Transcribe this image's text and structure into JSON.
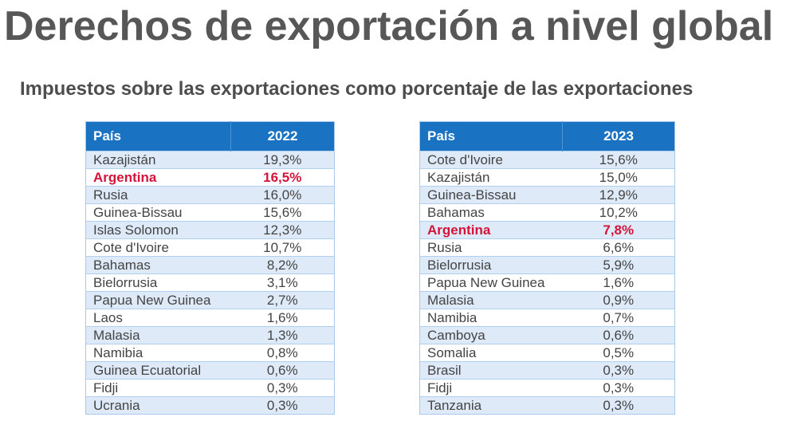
{
  "title": "Derechos de exportación a nivel global",
  "subtitle": "Impuestos sobre las exportaciones como porcentaje de las exportaciones",
  "colors": {
    "header_bg": "#1a72c2",
    "row_alt_bg": "#dfeaf8",
    "highlight_text": "#d4143a",
    "title_text": "#575757"
  },
  "tables": [
    {
      "header": {
        "country": "País",
        "year": "2022"
      },
      "rows": [
        {
          "country": "Kazajistán",
          "value": "19,3%",
          "highlight": false
        },
        {
          "country": "Argentina",
          "value": "16,5%",
          "highlight": true
        },
        {
          "country": "Rusia",
          "value": "16,0%",
          "highlight": false
        },
        {
          "country": "Guinea-Bissau",
          "value": "15,6%",
          "highlight": false
        },
        {
          "country": "Islas Solomon",
          "value": "12,3%",
          "highlight": false
        },
        {
          "country": "Cote d'Ivoire",
          "value": "10,7%",
          "highlight": false
        },
        {
          "country": "Bahamas",
          "value": "8,2%",
          "highlight": false
        },
        {
          "country": "Bielorrusia",
          "value": "3,1%",
          "highlight": false
        },
        {
          "country": "Papua New Guinea",
          "value": "2,7%",
          "highlight": false
        },
        {
          "country": "Laos",
          "value": "1,6%",
          "highlight": false
        },
        {
          "country": "Malasia",
          "value": "1,3%",
          "highlight": false
        },
        {
          "country": "Namibia",
          "value": "0,8%",
          "highlight": false
        },
        {
          "country": "Guinea Ecuatorial",
          "value": "0,6%",
          "highlight": false
        },
        {
          "country": "Fidji",
          "value": "0,3%",
          "highlight": false
        },
        {
          "country": "Ucrania",
          "value": "0,3%",
          "highlight": false
        }
      ]
    },
    {
      "header": {
        "country": "País",
        "year": "2023"
      },
      "rows": [
        {
          "country": "Cote d'Ivoire",
          "value": "15,6%",
          "highlight": false
        },
        {
          "country": "Kazajistán",
          "value": "15,0%",
          "highlight": false
        },
        {
          "country": "Guinea-Bissau",
          "value": "12,9%",
          "highlight": false
        },
        {
          "country": "Bahamas",
          "value": "10,2%",
          "highlight": false
        },
        {
          "country": "Argentina",
          "value": "7,8%",
          "highlight": true
        },
        {
          "country": "Rusia",
          "value": "6,6%",
          "highlight": false
        },
        {
          "country": "Bielorrusia",
          "value": "5,9%",
          "highlight": false
        },
        {
          "country": "Papua New Guinea",
          "value": "1,6%",
          "highlight": false
        },
        {
          "country": "Malasia",
          "value": "0,9%",
          "highlight": false
        },
        {
          "country": "Namibia",
          "value": "0,7%",
          "highlight": false
        },
        {
          "country": "Camboya",
          "value": "0,6%",
          "highlight": false
        },
        {
          "country": "Somalia",
          "value": "0,5%",
          "highlight": false
        },
        {
          "country": "Brasil",
          "value": "0,3%",
          "highlight": false
        },
        {
          "country": "Fidji",
          "value": "0,3%",
          "highlight": false
        },
        {
          "country": "Tanzania",
          "value": "0,3%",
          "highlight": false
        }
      ]
    }
  ]
}
